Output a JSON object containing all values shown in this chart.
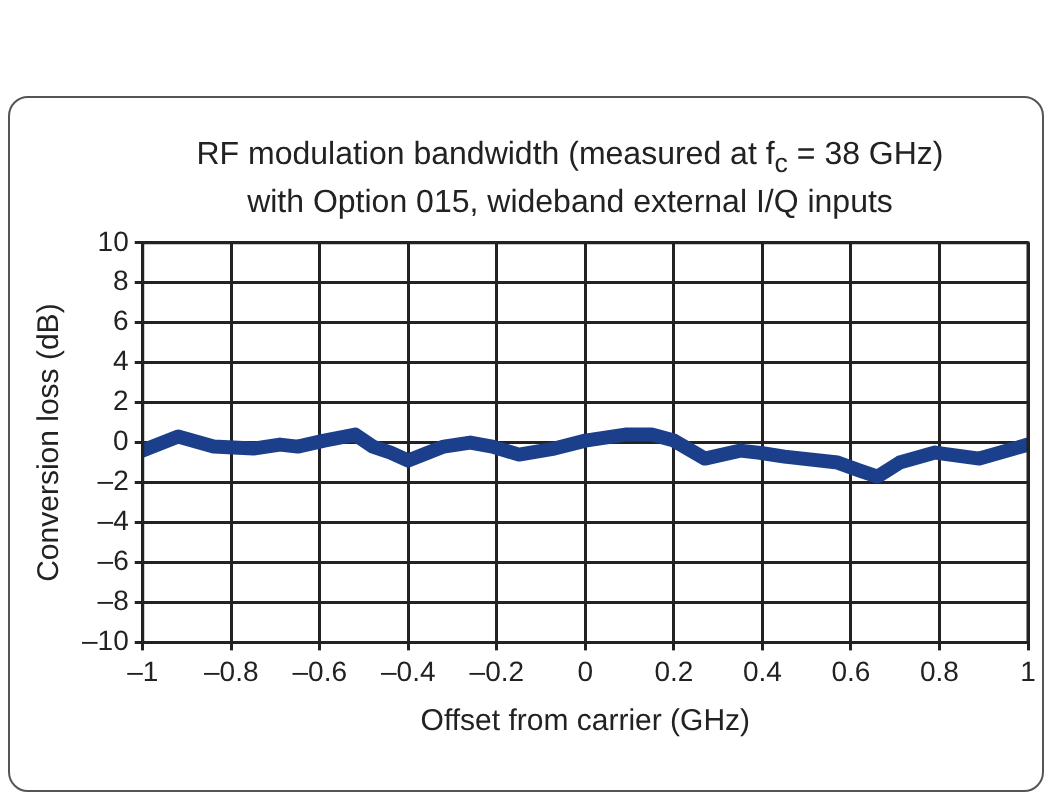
{
  "chart_data": {
    "type": "line",
    "title": "RF modulation bandwidth (measured at f$_{c}$ = 38 GHz)\nwith Option 015, wideband external I/Q inputs",
    "xlabel": "Offset from carrier (GHz)",
    "ylabel": "Conversion loss (dB)",
    "series": [
      {
        "color": "#1b3f8b",
        "x": [
          -1,
          -0.92,
          -0.84,
          -0.75,
          -0.69,
          -0.65,
          -0.59,
          -0.52,
          -0.48,
          -0.44,
          -0.4,
          -0.32,
          -0.26,
          -0.21,
          -0.15,
          -0.07,
          0,
          0.09,
          0.15,
          0.2,
          0.27,
          0.35,
          0.39,
          0.45,
          0.57,
          0.62,
          0.66,
          0.71,
          0.79,
          0.89,
          1
        ],
        "values": [
          -0.4,
          0.3,
          -0.2,
          -0.3,
          -0.1,
          -0.2,
          0.1,
          0.4,
          -0.2,
          -0.5,
          -0.9,
          -0.2,
          0,
          -0.2,
          -0.6,
          -0.3,
          0.1,
          0.4,
          0.4,
          0.1,
          -0.8,
          -0.4,
          -0.5,
          -0.7,
          -1,
          -1.4,
          -1.7,
          -1,
          -0.5,
          -0.8,
          -0.1
        ]
      }
    ],
    "xlim": [
      -1,
      1
    ],
    "xticks": [
      {
        "value": -1,
        "label": "–1"
      },
      {
        "value": -0.8,
        "label": "–0.8"
      },
      {
        "value": -0.6,
        "label": "–0.6"
      },
      {
        "value": -0.4,
        "label": "–0.4"
      },
      {
        "value": -0.2,
        "label": "–0.2"
      },
      0,
      0.2,
      0.4,
      0.6,
      0.8,
      1
    ],
    "ylim": [
      -10,
      10
    ],
    "yticks": [
      {
        "value": -10,
        "label": "–10"
      },
      {
        "value": -8,
        "label": "–8"
      },
      {
        "value": -6,
        "label": "–6"
      },
      {
        "value": -4,
        "label": "–4"
      },
      {
        "value": -2,
        "label": "–2"
      },
      0,
      2,
      4,
      6,
      8,
      10
    ],
    "grid": true,
    "legend": false,
    "marker": "none",
    "line_style": "solid"
  }
}
